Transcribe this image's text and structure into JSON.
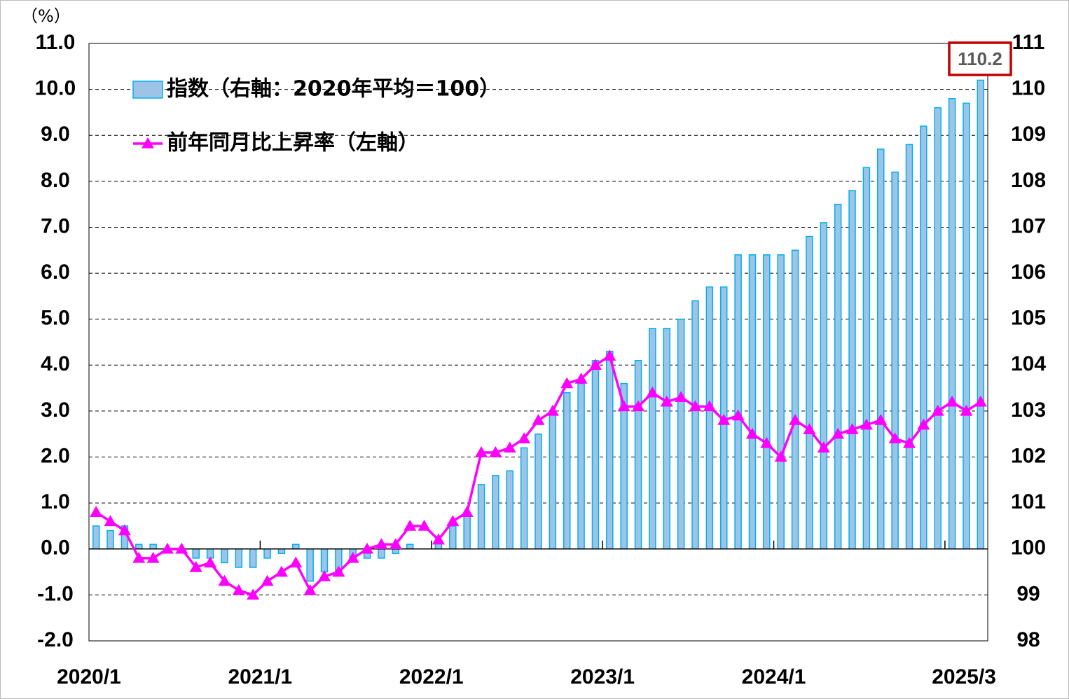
{
  "chart_data": {
    "type": "bar_line",
    "y_unit": "（%）",
    "categories": [
      "2020/1",
      null,
      null,
      null,
      null,
      null,
      null,
      null,
      null,
      null,
      null,
      null,
      "2021/1",
      null,
      null,
      null,
      null,
      null,
      null,
      null,
      null,
      null,
      null,
      null,
      "2022/1",
      null,
      null,
      null,
      null,
      null,
      null,
      null,
      null,
      null,
      null,
      null,
      "2023/1",
      null,
      null,
      null,
      null,
      null,
      null,
      null,
      null,
      null,
      null,
      null,
      "2024/1",
      null,
      null,
      null,
      null,
      null,
      null,
      null,
      null,
      null,
      null,
      null,
      null,
      null,
      "2025/3"
    ],
    "series": [
      {
        "name": "指数（右軸：2020年平均＝100）",
        "type": "bar",
        "axis": "y2",
        "color": "#9DC3E6",
        "edge": "#00B0F0",
        "values": [
          100.5,
          100.4,
          100.5,
          100.1,
          100.1,
          100.0,
          100.0,
          99.8,
          99.8,
          99.7,
          99.6,
          99.6,
          99.8,
          99.9,
          100.1,
          99.3,
          99.5,
          99.5,
          99.8,
          99.8,
          99.8,
          99.9,
          100.1,
          100.0,
          100.2,
          100.5,
          100.8,
          101.4,
          101.6,
          101.7,
          102.2,
          102.5,
          103.0,
          103.4,
          103.6,
          104.1,
          104.3,
          103.6,
          104.1,
          104.8,
          104.8,
          105.0,
          105.4,
          105.7,
          105.7,
          106.4,
          106.4,
          106.4,
          106.4,
          106.5,
          106.8,
          107.1,
          107.5,
          107.8,
          108.3,
          108.7,
          108.2,
          108.8,
          109.2,
          109.6,
          109.8,
          109.7,
          110.2
        ]
      },
      {
        "name": "前年同月比上昇率（左軸）",
        "type": "line",
        "axis": "y",
        "color": "#FF00FF",
        "values": [
          0.8,
          0.6,
          0.4,
          -0.2,
          -0.2,
          0.0,
          0.0,
          -0.4,
          -0.3,
          -0.7,
          -0.9,
          -1.0,
          -0.7,
          -0.5,
          -0.3,
          -0.9,
          -0.6,
          -0.5,
          -0.2,
          0.0,
          0.1,
          0.1,
          0.5,
          0.5,
          0.2,
          0.6,
          0.8,
          2.1,
          2.1,
          2.2,
          2.4,
          2.8,
          3.0,
          3.6,
          3.7,
          4.0,
          4.2,
          3.1,
          3.1,
          3.4,
          3.2,
          3.3,
          3.1,
          3.1,
          2.8,
          2.9,
          2.5,
          2.3,
          2.0,
          2.8,
          2.6,
          2.2,
          2.5,
          2.6,
          2.7,
          2.8,
          2.4,
          2.3,
          2.7,
          3.0,
          3.2,
          3.0,
          3.2
        ]
      }
    ],
    "ylim": [
      -2,
      11
    ],
    "yticks": [
      {
        "value": -2,
        "label": "-2.0"
      },
      {
        "value": -1,
        "label": "-1.0"
      },
      {
        "value": 0,
        "label": "0.0"
      },
      {
        "value": 1,
        "label": "1.0"
      },
      {
        "value": 2,
        "label": "2.0"
      },
      {
        "value": 3,
        "label": "3.0"
      },
      {
        "value": 4,
        "label": "4.0"
      },
      {
        "value": 5,
        "label": "5.0"
      },
      {
        "value": 6,
        "label": "6.0"
      },
      {
        "value": 7,
        "label": "7.0"
      },
      {
        "value": 8,
        "label": "8.0"
      },
      {
        "value": 9,
        "label": "9.0"
      },
      {
        "value": 10,
        "label": "10.0"
      },
      {
        "value": 11,
        "label": "11.0"
      }
    ],
    "y2lim": [
      98,
      111
    ],
    "y2ticks": [
      98,
      99,
      100,
      101,
      102,
      103,
      104,
      105,
      106,
      107,
      108,
      109,
      110,
      111
    ],
    "grid": true,
    "highlight_index": 62
  }
}
